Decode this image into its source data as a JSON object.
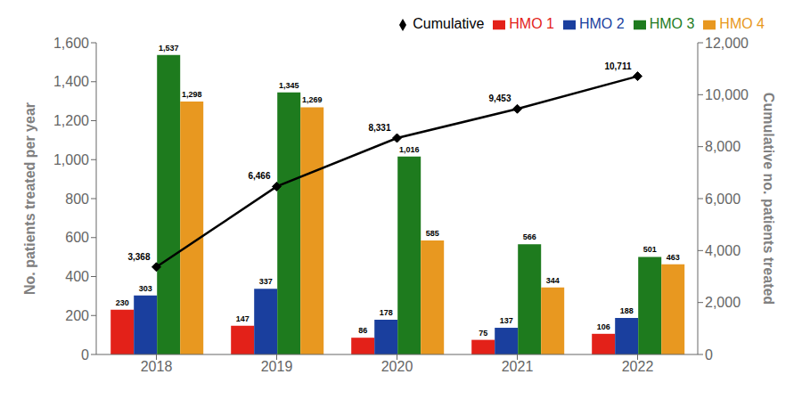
{
  "chart_data": {
    "type": "bar",
    "categories": [
      "2018",
      "2019",
      "2020",
      "2021",
      "2022"
    ],
    "series": [
      {
        "name": "HMO 1",
        "color": "#e32119",
        "type": "bar",
        "values": [
          230,
          147,
          86,
          75,
          106
        ]
      },
      {
        "name": "HMO 2",
        "color": "#1a3f9e",
        "type": "bar",
        "values": [
          303,
          337,
          178,
          137,
          188
        ]
      },
      {
        "name": "HMO 3",
        "color": "#1e7b1e",
        "type": "bar",
        "values": [
          1537,
          1345,
          1016,
          566,
          501
        ],
        "value_labels": [
          "1,537",
          "1,345",
          "1,016",
          "566",
          "501"
        ]
      },
      {
        "name": "HMO 4",
        "color": "#e89820",
        "type": "bar",
        "values": [
          1298,
          1269,
          585,
          344,
          463
        ],
        "value_labels": [
          "1,298",
          "1,269",
          "585",
          "344",
          "463"
        ]
      },
      {
        "name": "Cumulative",
        "color": "#000000",
        "type": "line",
        "marker": "diamond",
        "axis": "y2",
        "values": [
          3368,
          6466,
          8331,
          9453,
          10711
        ],
        "value_labels": [
          "3,368",
          "6,466",
          "8,331",
          "9,453",
          "10,711"
        ]
      }
    ],
    "ylabel": "No. patients treated per year",
    "y2label": "Cumulative no. patients treated",
    "ylim": [
      0,
      1600
    ],
    "yticks": [
      0,
      200,
      400,
      600,
      800,
      {
        "value": 1000,
        "label": "1,000"
      },
      {
        "value": 1200,
        "label": "1,200"
      },
      {
        "value": 1400,
        "label": "1,400"
      },
      {
        "value": 1600,
        "label": "1,600"
      }
    ],
    "y2lim": [
      0,
      12000
    ],
    "y2ticks": [
      0,
      {
        "value": 2000,
        "label": "2,000"
      },
      {
        "value": 4000,
        "label": "4,000"
      },
      {
        "value": 6000,
        "label": "6,000"
      },
      {
        "value": 8000,
        "label": "8,000"
      },
      {
        "value": 10000,
        "label": "10,000"
      },
      {
        "value": 12000,
        "label": "12,000"
      }
    ],
    "data_labels": true,
    "legend": "upper right",
    "grid": false
  }
}
